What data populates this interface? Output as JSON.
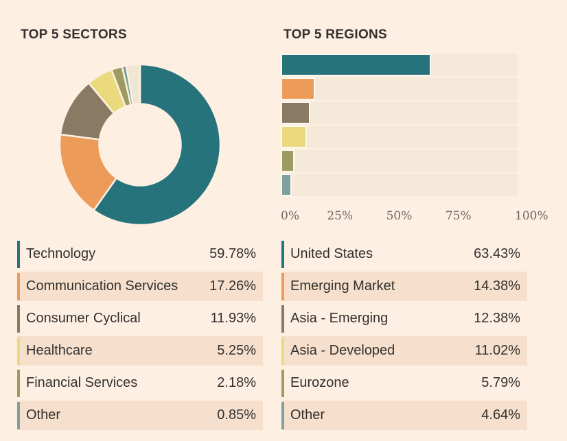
{
  "colors": {
    "background": "#FDF0E3",
    "text": "#33302E",
    "axis_text": "#6B6560",
    "bar_track": "#F5E9D9",
    "legend_row_stripe": "#F6E0CD",
    "bar_outline": "#FCF8EF",
    "donut_remainder": "#EFE6D4"
  },
  "chart_data": [
    {
      "type": "pie",
      "subtype": "donut",
      "title": "TOP 5 SECTORS",
      "labels": [
        "Technology",
        "Communication Services",
        "Consumer Cyclical",
        "Healthcare",
        "Financial Services",
        "Other"
      ],
      "values": [
        59.78,
        17.26,
        11.93,
        5.25,
        2.18,
        0.85
      ],
      "display_values": [
        "59.78%",
        "17.26%",
        "11.93%",
        "5.25%",
        "2.18%",
        "0.85%"
      ],
      "colors": [
        "#26737C",
        "#EC9B58",
        "#8B7A63",
        "#EBD97D",
        "#9C9B60",
        "#7FA09E"
      ],
      "remainder_value": 2.75,
      "start_angle": "12-oclock",
      "direction": "clockwise",
      "inner_radius_ratio": 0.5,
      "legend_position": "bottom"
    },
    {
      "type": "bar",
      "orientation": "horizontal",
      "title": "TOP 5 REGIONS",
      "categories": [
        "United States",
        "Emerging Market",
        "Asia - Emerging",
        "Asia - Developed",
        "Eurozone",
        "Other"
      ],
      "values": [
        63.43,
        14.38,
        12.38,
        11.02,
        5.79,
        4.64
      ],
      "display_values": [
        "63.43%",
        "14.38%",
        "12.38%",
        "11.02%",
        "5.79%",
        "4.64%"
      ],
      "colors": [
        "#26737C",
        "#EC9B58",
        "#8B7A63",
        "#EBD97D",
        "#9C9B60",
        "#7FA09E"
      ],
      "xlim": [
        0,
        100
      ],
      "xticklabels": [
        "0%",
        "25%",
        "50%",
        "75%",
        "100%"
      ],
      "grid": false,
      "legend_position": "bottom"
    }
  ]
}
